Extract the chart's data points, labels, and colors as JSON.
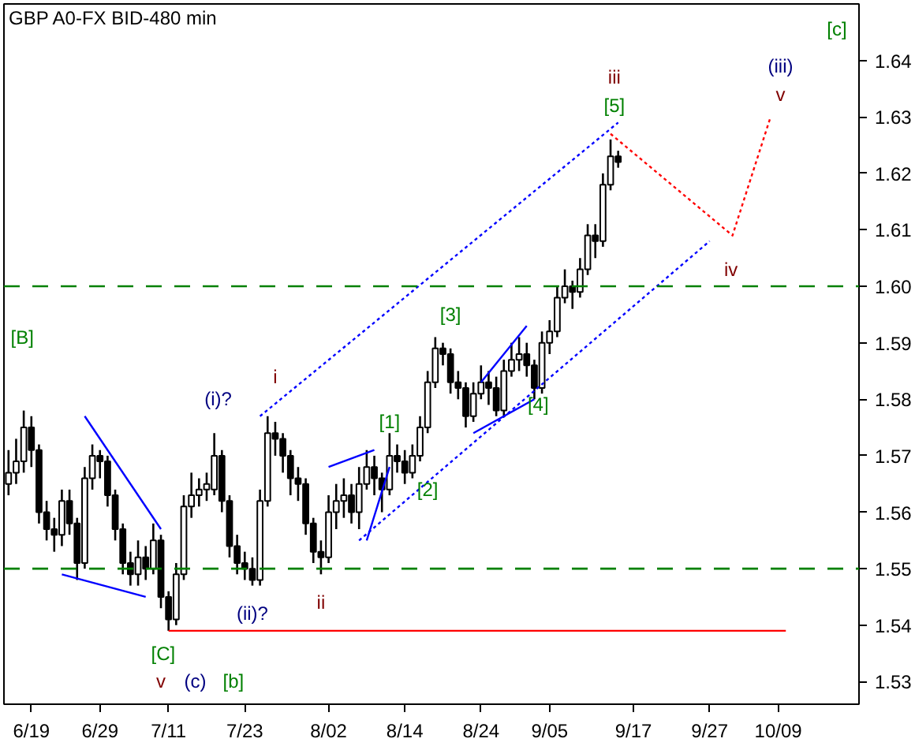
{
  "chart_data": {
    "type": "candlestick",
    "title": "GBP A0-FX BID-480 min",
    "categories": [
      null,
      null,
      null,
      "6/19",
      null,
      null,
      null,
      null,
      null,
      null,
      null,
      null,
      "6/29",
      null,
      null,
      null,
      null,
      null,
      null,
      null,
      null,
      "7/11",
      null,
      null,
      null,
      null,
      null,
      null,
      null,
      null,
      null,
      "7/23",
      null,
      null,
      null,
      null,
      null,
      null,
      null,
      null,
      null,
      null,
      "8/02",
      null,
      null,
      null,
      null,
      null,
      null,
      null,
      null,
      null,
      "8/14",
      null,
      null,
      null,
      null,
      null,
      null,
      null,
      null,
      null,
      "8/24",
      null,
      null,
      null,
      null,
      null,
      null,
      null,
      null,
      "9/05",
      null,
      null,
      null,
      null,
      null,
      null,
      null,
      null,
      null,
      null,
      "9/17",
      null,
      null,
      null,
      null,
      null,
      null,
      null,
      null,
      null,
      "9/27",
      null,
      null,
      null,
      null,
      null,
      null,
      null,
      null,
      "10/09",
      null,
      null,
      null,
      null,
      null,
      null,
      null,
      null,
      null,
      null
    ],
    "ohlc": [
      [
        1.565,
        1.571,
        1.563,
        1.567
      ],
      [
        1.567,
        1.573,
        1.565,
        1.569
      ],
      [
        1.569,
        1.578,
        1.567,
        1.575
      ],
      [
        1.575,
        1.577,
        1.568,
        1.571
      ],
      [
        1.571,
        1.572,
        1.558,
        1.56
      ],
      [
        1.56,
        1.562,
        1.555,
        1.557
      ],
      [
        1.557,
        1.559,
        1.553,
        1.556
      ],
      [
        1.556,
        1.564,
        1.554,
        1.562
      ],
      [
        1.562,
        1.564,
        1.556,
        1.558
      ],
      [
        1.558,
        1.559,
        1.548,
        1.551
      ],
      [
        1.551,
        1.568,
        1.55,
        1.566
      ],
      [
        1.566,
        1.572,
        1.564,
        1.57
      ],
      [
        1.57,
        1.571,
        1.566,
        1.569
      ],
      [
        1.569,
        1.57,
        1.561,
        1.563
      ],
      [
        1.563,
        1.564,
        1.555,
        1.557
      ],
      [
        1.557,
        1.558,
        1.549,
        1.551
      ],
      [
        1.551,
        1.553,
        1.547,
        1.549
      ],
      [
        1.549,
        1.555,
        1.547,
        1.552
      ],
      [
        1.552,
        1.554,
        1.548,
        1.55
      ],
      [
        1.55,
        1.558,
        1.549,
        1.555
      ],
      [
        1.555,
        1.556,
        1.543,
        1.545
      ],
      [
        1.545,
        1.546,
        1.539,
        1.541
      ],
      [
        1.541,
        1.551,
        1.54,
        1.549
      ],
      [
        1.549,
        1.563,
        1.548,
        1.561
      ],
      [
        1.561,
        1.567,
        1.559,
        1.563
      ],
      [
        1.563,
        1.566,
        1.561,
        1.564
      ],
      [
        1.564,
        1.567,
        1.562,
        1.565
      ],
      [
        1.564,
        1.574,
        1.563,
        1.57
      ],
      [
        1.57,
        1.571,
        1.56,
        1.562
      ],
      [
        1.562,
        1.563,
        1.552,
        1.554
      ],
      [
        1.554,
        1.556,
        1.549,
        1.551
      ],
      [
        1.551,
        1.553,
        1.548,
        1.55
      ],
      [
        1.55,
        1.552,
        1.547,
        1.548
      ],
      [
        1.548,
        1.564,
        1.547,
        1.562
      ],
      [
        1.562,
        1.577,
        1.561,
        1.574
      ],
      [
        1.574,
        1.576,
        1.57,
        1.573
      ],
      [
        1.573,
        1.574,
        1.567,
        1.57
      ],
      [
        1.57,
        1.571,
        1.563,
        1.566
      ],
      [
        1.566,
        1.568,
        1.562,
        1.565
      ],
      [
        1.565,
        1.566,
        1.556,
        1.558
      ],
      [
        1.558,
        1.559,
        1.551,
        1.553
      ],
      [
        1.553,
        1.555,
        1.549,
        1.552
      ],
      [
        1.552,
        1.563,
        1.551,
        1.56
      ],
      [
        1.56,
        1.565,
        1.557,
        1.562
      ],
      [
        1.562,
        1.566,
        1.559,
        1.563
      ],
      [
        1.563,
        1.565,
        1.558,
        1.56
      ],
      [
        1.56,
        1.568,
        1.557,
        1.565
      ],
      [
        1.565,
        1.571,
        1.564,
        1.568
      ],
      [
        1.568,
        1.57,
        1.563,
        1.566
      ],
      [
        1.566,
        1.567,
        1.56,
        1.564
      ],
      [
        1.564,
        1.574,
        1.563,
        1.57
      ],
      [
        1.57,
        1.572,
        1.567,
        1.569
      ],
      [
        1.569,
        1.571,
        1.565,
        1.567
      ],
      [
        1.567,
        1.572,
        1.566,
        1.57
      ],
      [
        1.57,
        1.577,
        1.569,
        1.575
      ],
      [
        1.575,
        1.585,
        1.574,
        1.583
      ],
      [
        1.583,
        1.591,
        1.582,
        1.589
      ],
      [
        1.589,
        1.59,
        1.586,
        1.588
      ],
      [
        1.588,
        1.589,
        1.581,
        1.583
      ],
      [
        1.583,
        1.585,
        1.58,
        1.582
      ],
      [
        1.582,
        1.583,
        1.575,
        1.577
      ],
      [
        1.577,
        1.583,
        1.576,
        1.581
      ],
      [
        1.581,
        1.586,
        1.58,
        1.583
      ],
      [
        1.583,
        1.585,
        1.579,
        1.582
      ],
      [
        1.582,
        1.584,
        1.577,
        1.578
      ],
      [
        1.578,
        1.587,
        1.577,
        1.585
      ],
      [
        1.585,
        1.59,
        1.584,
        1.587
      ],
      [
        1.587,
        1.591,
        1.585,
        1.588
      ],
      [
        1.588,
        1.59,
        1.584,
        1.586
      ],
      [
        1.586,
        1.587,
        1.58,
        1.582
      ],
      [
        1.582,
        1.592,
        1.581,
        1.59
      ],
      [
        1.59,
        1.594,
        1.588,
        1.592
      ],
      [
        1.592,
        1.6,
        1.591,
        1.598
      ],
      [
        1.598,
        1.603,
        1.597,
        1.6
      ],
      [
        1.6,
        1.601,
        1.596,
        1.599
      ],
      [
        1.599,
        1.605,
        1.598,
        1.603
      ],
      [
        1.603,
        1.611,
        1.602,
        1.609
      ],
      [
        1.609,
        1.611,
        1.605,
        1.608
      ],
      [
        1.608,
        1.62,
        1.607,
        1.618
      ],
      [
        1.618,
        1.626,
        1.617,
        1.623
      ],
      [
        1.623,
        1.624,
        1.621,
        1.622
      ],
      null,
      null,
      null,
      null,
      null,
      null,
      null,
      null,
      null,
      null,
      null,
      null,
      null,
      null,
      null,
      null,
      null,
      null,
      null,
      null,
      null,
      null,
      null,
      null,
      null,
      null,
      null,
      null,
      null,
      null,
      null
    ],
    "color": "#000000",
    "series": [
      {
        "type": "line",
        "color": "#ff0000",
        "line_style": "solid",
        "values": [
          null,
          null,
          null,
          null,
          null,
          null,
          null,
          null,
          null,
          null,
          null,
          null,
          null,
          null,
          null,
          null,
          null,
          null,
          null,
          null,
          null,
          1.539,
          null,
          null,
          null,
          null,
          null,
          null,
          null,
          null,
          null,
          null,
          null,
          null,
          null,
          null,
          null,
          null,
          null,
          null,
          null,
          null,
          null,
          null,
          null,
          null,
          null,
          null,
          null,
          null,
          null,
          null,
          null,
          null,
          null,
          null,
          null,
          null,
          null,
          null,
          null,
          null,
          null,
          null,
          null,
          null,
          null,
          null,
          null,
          null,
          null,
          null,
          null,
          null,
          null,
          null,
          null,
          null,
          null,
          null,
          null,
          null,
          null,
          null,
          null,
          null,
          null,
          null,
          null,
          null,
          null,
          null,
          null,
          null,
          null,
          null,
          null,
          null,
          null,
          null,
          null,
          null,
          1.539,
          null,
          null,
          null,
          null,
          null,
          null,
          null,
          null,
          null
        ]
      },
      {
        "type": "line",
        "color": "#0000ff",
        "line_style": "dotted",
        "values": [
          null,
          null,
          null,
          null,
          null,
          null,
          null,
          null,
          null,
          null,
          null,
          null,
          null,
          null,
          null,
          null,
          null,
          null,
          null,
          null,
          null,
          null,
          null,
          null,
          null,
          null,
          null,
          null,
          null,
          null,
          null,
          null,
          null,
          1.577,
          null,
          null,
          null,
          null,
          null,
          null,
          null,
          null,
          null,
          null,
          null,
          null,
          null,
          null,
          null,
          null,
          null,
          null,
          null,
          null,
          null,
          null,
          null,
          null,
          null,
          null,
          null,
          null,
          null,
          null,
          null,
          null,
          null,
          null,
          null,
          null,
          null,
          null,
          null,
          null,
          null,
          null,
          null,
          null,
          null,
          null,
          1.629,
          null,
          null,
          null,
          null,
          null,
          null,
          null,
          null,
          null,
          null,
          null,
          null,
          null,
          null,
          null,
          null,
          null,
          null,
          null,
          null,
          null,
          null,
          null,
          null,
          null,
          null,
          null,
          null,
          null,
          null,
          null
        ]
      },
      {
        "type": "line",
        "color": "#0000ff",
        "line_style": "dotted",
        "values": [
          null,
          null,
          null,
          null,
          null,
          null,
          null,
          null,
          null,
          null,
          null,
          null,
          null,
          null,
          null,
          null,
          null,
          null,
          null,
          null,
          null,
          null,
          null,
          null,
          null,
          null,
          null,
          null,
          null,
          null,
          null,
          null,
          null,
          null,
          null,
          null,
          null,
          null,
          null,
          null,
          null,
          null,
          null,
          null,
          null,
          null,
          1.555,
          null,
          null,
          null,
          null,
          null,
          null,
          null,
          null,
          null,
          null,
          null,
          null,
          null,
          null,
          null,
          null,
          null,
          null,
          null,
          null,
          null,
          null,
          null,
          null,
          null,
          null,
          null,
          null,
          null,
          null,
          null,
          null,
          null,
          null,
          null,
          null,
          null,
          null,
          null,
          null,
          null,
          null,
          null,
          null,
          null,
          1.608,
          null,
          null,
          null,
          null,
          null,
          null,
          null,
          null,
          null,
          null,
          null,
          null,
          null,
          null,
          null,
          null,
          null,
          null,
          null
        ]
      },
      {
        "type": "line",
        "color": "#ff0000",
        "line_style": "dotted",
        "values": [
          null,
          null,
          null,
          null,
          null,
          null,
          null,
          null,
          null,
          null,
          null,
          null,
          null,
          null,
          null,
          null,
          null,
          null,
          null,
          null,
          null,
          null,
          null,
          null,
          null,
          null,
          null,
          null,
          null,
          null,
          null,
          null,
          null,
          null,
          null,
          null,
          null,
          null,
          null,
          null,
          null,
          null,
          null,
          null,
          null,
          null,
          null,
          null,
          null,
          null,
          null,
          null,
          null,
          null,
          null,
          null,
          null,
          null,
          null,
          null,
          null,
          null,
          null,
          null,
          null,
          null,
          null,
          null,
          null,
          null,
          null,
          null,
          null,
          null,
          null,
          null,
          null,
          null,
          null,
          1.627,
          null,
          null,
          null,
          null,
          null,
          null,
          null,
          null,
          null,
          null,
          null,
          null,
          null,
          null,
          null,
          1.609,
          null,
          null,
          null,
          null,
          1.63,
          null,
          null,
          null,
          null,
          null,
          null,
          null,
          null,
          null,
          null,
          null
        ]
      },
      {
        "type": "line",
        "color": "#0000ff",
        "line_style": "solid",
        "values": [
          null,
          null,
          null,
          null,
          null,
          null,
          null,
          null,
          null,
          null,
          1.577,
          null,
          null,
          null,
          null,
          null,
          null,
          null,
          null,
          null,
          1.557,
          null,
          null,
          null,
          null,
          null,
          null,
          null,
          null,
          null,
          null,
          null,
          null,
          null,
          null,
          null,
          null,
          null,
          null,
          null,
          null,
          null,
          null,
          null,
          null,
          null,
          null,
          null,
          null,
          null,
          null,
          null,
          null,
          null,
          null,
          null,
          null,
          null,
          null,
          null,
          null,
          null,
          null,
          null,
          null,
          null,
          null,
          null,
          null,
          null,
          null,
          null,
          null,
          null,
          null,
          null,
          null,
          null,
          null,
          null,
          null,
          null,
          null,
          null,
          null,
          null,
          null,
          null,
          null,
          null,
          null,
          null,
          null,
          null,
          null,
          null,
          null,
          null,
          null,
          null,
          null,
          null,
          null,
          null,
          null,
          null,
          null,
          null,
          null,
          null,
          null,
          null
        ]
      },
      {
        "type": "line",
        "color": "#0000ff",
        "line_style": "solid",
        "values": [
          null,
          null,
          null,
          null,
          null,
          null,
          null,
          1.549,
          null,
          null,
          null,
          null,
          null,
          null,
          null,
          null,
          null,
          null,
          1.545,
          null,
          null,
          null,
          null,
          null,
          null,
          null,
          null,
          null,
          null,
          null,
          null,
          null,
          null,
          null,
          null,
          null,
          null,
          null,
          null,
          null,
          null,
          null,
          null,
          null,
          null,
          null,
          null,
          null,
          null,
          null,
          null,
          null,
          null,
          null,
          null,
          null,
          null,
          null,
          null,
          null,
          null,
          null,
          null,
          null,
          null,
          null,
          null,
          null,
          null,
          null,
          null,
          null,
          null,
          null,
          null,
          null,
          null,
          null,
          null,
          null,
          null,
          null,
          null,
          null,
          null,
          null,
          null,
          null,
          null,
          null,
          null,
          null,
          null,
          null,
          null,
          null,
          null,
          null,
          null,
          null,
          null,
          null,
          null,
          null,
          null,
          null,
          null,
          null,
          null,
          null,
          null,
          null
        ]
      },
      {
        "type": "line",
        "color": "#0000ff",
        "line_style": "solid",
        "values": [
          null,
          null,
          null,
          null,
          null,
          null,
          null,
          null,
          null,
          null,
          null,
          null,
          null,
          null,
          null,
          null,
          null,
          null,
          null,
          null,
          null,
          null,
          null,
          null,
          null,
          null,
          null,
          null,
          null,
          null,
          null,
          null,
          null,
          null,
          null,
          null,
          null,
          null,
          null,
          null,
          null,
          null,
          1.568,
          null,
          null,
          null,
          null,
          null,
          1.571,
          null,
          null,
          null,
          null,
          null,
          null,
          null,
          null,
          null,
          null,
          null,
          null,
          null,
          null,
          null,
          null,
          null,
          null,
          null,
          null,
          null,
          null,
          null,
          null,
          null,
          null,
          null,
          null,
          null,
          null,
          null,
          null,
          null,
          null,
          null,
          null,
          null,
          null,
          null,
          null,
          null,
          null,
          null,
          null,
          null,
          null,
          null,
          null,
          null,
          null,
          null,
          null,
          null,
          null,
          null,
          null,
          null,
          null,
          null,
          null,
          null,
          null,
          null
        ]
      },
      {
        "type": "line",
        "color": "#0000ff",
        "line_style": "solid",
        "values": [
          null,
          null,
          null,
          null,
          null,
          null,
          null,
          null,
          null,
          null,
          null,
          null,
          null,
          null,
          null,
          null,
          null,
          null,
          null,
          null,
          null,
          null,
          null,
          null,
          null,
          null,
          null,
          null,
          null,
          null,
          null,
          null,
          null,
          null,
          null,
          null,
          null,
          null,
          null,
          null,
          null,
          null,
          null,
          null,
          null,
          null,
          null,
          1.555,
          null,
          null,
          1.568,
          null,
          null,
          null,
          null,
          null,
          null,
          null,
          null,
          null,
          null,
          null,
          null,
          null,
          null,
          null,
          null,
          null,
          null,
          null,
          null,
          null,
          null,
          null,
          null,
          null,
          null,
          null,
          null,
          null,
          null,
          null,
          null,
          null,
          null,
          null,
          null,
          null,
          null,
          null,
          null,
          null,
          null,
          null,
          null,
          null,
          null,
          null,
          null,
          null,
          null,
          null,
          null,
          null,
          null,
          null,
          null,
          null,
          null,
          null,
          null,
          null
        ]
      },
      {
        "type": "line",
        "color": "#0000ff",
        "line_style": "solid",
        "values": [
          null,
          null,
          null,
          null,
          null,
          null,
          null,
          null,
          null,
          null,
          null,
          null,
          null,
          null,
          null,
          null,
          null,
          null,
          null,
          null,
          null,
          null,
          null,
          null,
          null,
          null,
          null,
          null,
          null,
          null,
          null,
          null,
          null,
          null,
          null,
          null,
          null,
          null,
          null,
          null,
          null,
          null,
          null,
          null,
          null,
          null,
          null,
          null,
          null,
          null,
          null,
          null,
          null,
          null,
          null,
          null,
          null,
          null,
          null,
          null,
          null,
          null,
          1.583,
          null,
          null,
          null,
          null,
          null,
          1.593,
          null,
          null,
          null,
          null,
          null,
          null,
          null,
          null,
          null,
          null,
          null,
          null,
          null,
          null,
          null,
          null,
          null,
          null,
          null,
          null,
          null,
          null,
          null,
          null,
          null,
          null,
          null,
          null,
          null,
          null,
          null,
          null,
          null,
          null,
          null,
          null,
          null,
          null,
          null,
          null,
          null,
          null,
          null
        ]
      },
      {
        "type": "line",
        "color": "#0000ff",
        "line_style": "solid",
        "values": [
          null,
          null,
          null,
          null,
          null,
          null,
          null,
          null,
          null,
          null,
          null,
          null,
          null,
          null,
          null,
          null,
          null,
          null,
          null,
          null,
          null,
          null,
          null,
          null,
          null,
          null,
          null,
          null,
          null,
          null,
          null,
          null,
          null,
          null,
          null,
          null,
          null,
          null,
          null,
          null,
          null,
          null,
          null,
          null,
          null,
          null,
          null,
          null,
          null,
          null,
          null,
          null,
          null,
          null,
          null,
          null,
          null,
          null,
          null,
          null,
          null,
          1.574,
          null,
          null,
          null,
          null,
          null,
          null,
          null,
          1.58,
          null,
          null,
          null,
          null,
          null,
          null,
          null,
          null,
          null,
          null,
          null,
          null,
          null,
          null,
          null,
          null,
          null,
          null,
          null,
          null,
          null,
          null,
          null,
          null,
          null,
          null,
          null,
          null,
          null,
          null,
          null,
          null,
          null,
          null,
          null,
          null,
          null,
          null,
          null,
          null,
          null,
          null
        ]
      }
    ],
    "ref_lines": [
      {
        "axis": "y",
        "value": 1.6,
        "label": null,
        "color": "#008000",
        "line_style": "dashed"
      },
      {
        "axis": "y",
        "value": 1.55,
        "label": null,
        "color": "#008000",
        "line_style": "dashed"
      }
    ],
    "annotations": [
      "[B]",
      "(i)?",
      "i",
      "(ii)?",
      "ii",
      "[C]",
      "v",
      "(c)",
      "[b]",
      "[1]",
      "[2]",
      "[3]",
      "[4]",
      "iii",
      "[5]",
      "iv",
      "(iii)",
      "v",
      "[c]"
    ],
    "ylim": [
      1.526,
      1.65
    ],
    "yticks": [
      1.53,
      1.54,
      1.55,
      1.56,
      1.57,
      1.58,
      1.59,
      {
        "value": 1.6,
        "label": "1.60"
      },
      1.61,
      1.62,
      1.63,
      1.64
    ]
  }
}
